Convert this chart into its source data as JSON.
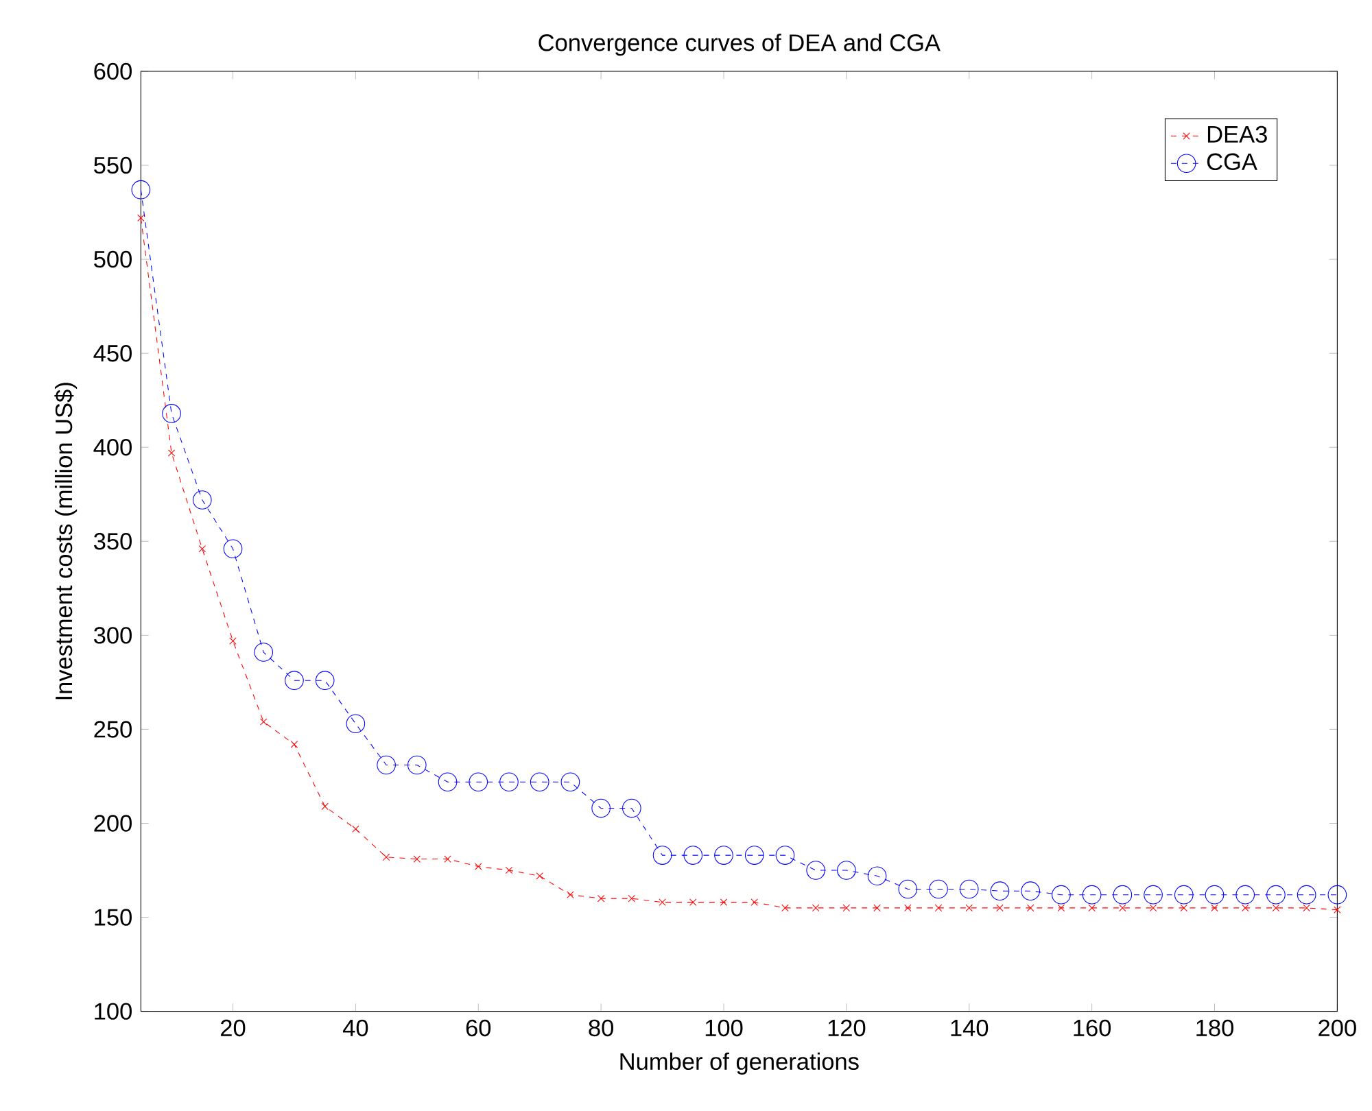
{
  "chart_data": {
    "type": "line",
    "title": "Convergence curves of DEA and CGA",
    "xlabel": "Number of generations",
    "ylabel": "Investment costs (million US$)",
    "x": [
      5,
      10,
      15,
      20,
      25,
      30,
      35,
      40,
      45,
      50,
      55,
      60,
      65,
      70,
      75,
      80,
      85,
      90,
      95,
      100,
      105,
      110,
      115,
      120,
      125,
      130,
      135,
      140,
      145,
      150,
      155,
      160,
      165,
      170,
      175,
      180,
      185,
      190,
      195,
      200
    ],
    "series": [
      {
        "name": "DEA3",
        "color": "#ff0000",
        "marker": "cross",
        "values": [
          522,
          397,
          346,
          297,
          254,
          242,
          209,
          197,
          182,
          181,
          181,
          177,
          175,
          172,
          162,
          160,
          160,
          158,
          158,
          158,
          158,
          155,
          155,
          155,
          155,
          155,
          155,
          155,
          155,
          155,
          155,
          155,
          155,
          155,
          155,
          155,
          155,
          155,
          155,
          154
        ]
      },
      {
        "name": "CGA",
        "color": "#0000ff",
        "marker": "circle",
        "values": [
          537,
          418,
          372,
          346,
          291,
          276,
          276,
          253,
          231,
          231,
          222,
          222,
          222,
          222,
          222,
          208,
          208,
          183,
          183,
          183,
          183,
          183,
          175,
          175,
          172,
          165,
          165,
          165,
          164,
          164,
          162,
          162,
          162,
          162,
          162,
          162,
          162,
          162,
          162,
          162
        ]
      }
    ],
    "line_style": "dashed",
    "legend": "top right",
    "grid": false,
    "xlim": [
      5,
      200
    ],
    "xticks": [
      20,
      40,
      60,
      80,
      100,
      120,
      140,
      160,
      180,
      200
    ],
    "ylim": [
      100,
      600
    ],
    "yticks": [
      100,
      150,
      200,
      250,
      300,
      350,
      400,
      450,
      500,
      550,
      600
    ]
  }
}
